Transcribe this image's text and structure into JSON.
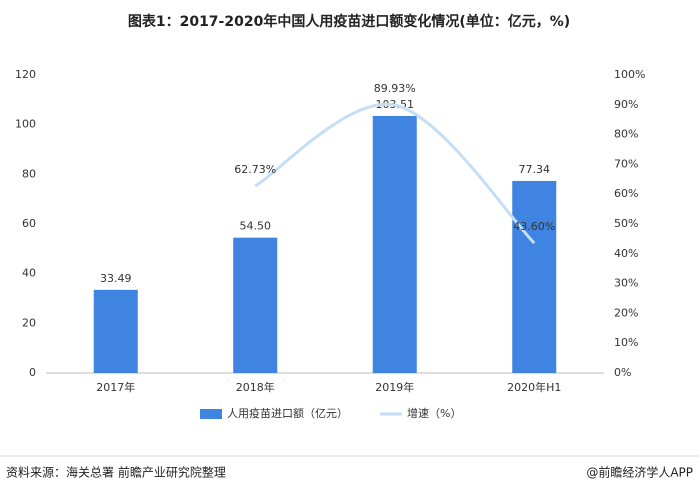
{
  "chart_data": {
    "type": "bar",
    "title": "图表1：2017-2020年中国人用疫苗进口额变化情况(单位：亿元，%)",
    "categories": [
      "2017年",
      "2018年",
      "2019年",
      "2020年H1"
    ],
    "series": [
      {
        "name": "人用疫苗进口额（亿元）",
        "type": "bar",
        "color": "#3f84e0",
        "values": [
          33.49,
          54.5,
          103.51,
          77.34
        ],
        "value_labels": [
          "33.49",
          "54.50",
          "103.51",
          "77.34"
        ]
      },
      {
        "name": "增速（%）",
        "type": "line",
        "axis": "y2",
        "color": "#c6ddf6",
        "values": [
          null,
          62.73,
          89.93,
          43.6
        ],
        "value_labels": [
          null,
          "62.73%",
          "89.93%",
          "43.60%"
        ]
      }
    ],
    "ylim": [
      0,
      120
    ],
    "yticks": [
      0,
      20,
      40,
      60,
      80,
      100,
      120
    ],
    "y2lim": [
      0,
      100
    ],
    "y2ticks": [
      {
        "value": 0,
        "label": "0%"
      },
      {
        "value": 10,
        "label": "10%"
      },
      {
        "value": 20,
        "label": "20%"
      },
      {
        "value": 30,
        "label": "30%"
      },
      {
        "value": 40,
        "label": "40%"
      },
      {
        "value": 50,
        "label": "50%"
      },
      {
        "value": 60,
        "label": "60%"
      },
      {
        "value": 70,
        "label": "70%"
      },
      {
        "value": 80,
        "label": "80%"
      },
      {
        "value": 90,
        "label": "90%"
      },
      {
        "value": 100,
        "label": "100%"
      }
    ],
    "legend": "bottom",
    "source": "资料来源：海关总署 前瞻产业研究院整理",
    "credit": "@前瞻经济学人APP"
  }
}
